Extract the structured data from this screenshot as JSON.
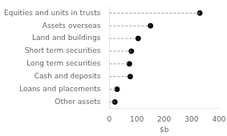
{
  "chart_data": {
    "type": "lollipop",
    "orientation": "horizontal",
    "categories": [
      "Equities and units in trusts",
      "Assets overseas",
      "Land and buildings",
      "Short term securities",
      "Long term securities",
      "Cash and deposits",
      "Loans and placements",
      "Other assets"
    ],
    "values": [
      330,
      150,
      105,
      80,
      73,
      76,
      28,
      20
    ],
    "color": "#000000",
    "marker": "circle",
    "line_style": "dashed",
    "xlabel": "$b",
    "xlim": [
      0,
      400
    ],
    "xticks": [
      0,
      100,
      200,
      300,
      400
    ],
    "grid": false
  }
}
